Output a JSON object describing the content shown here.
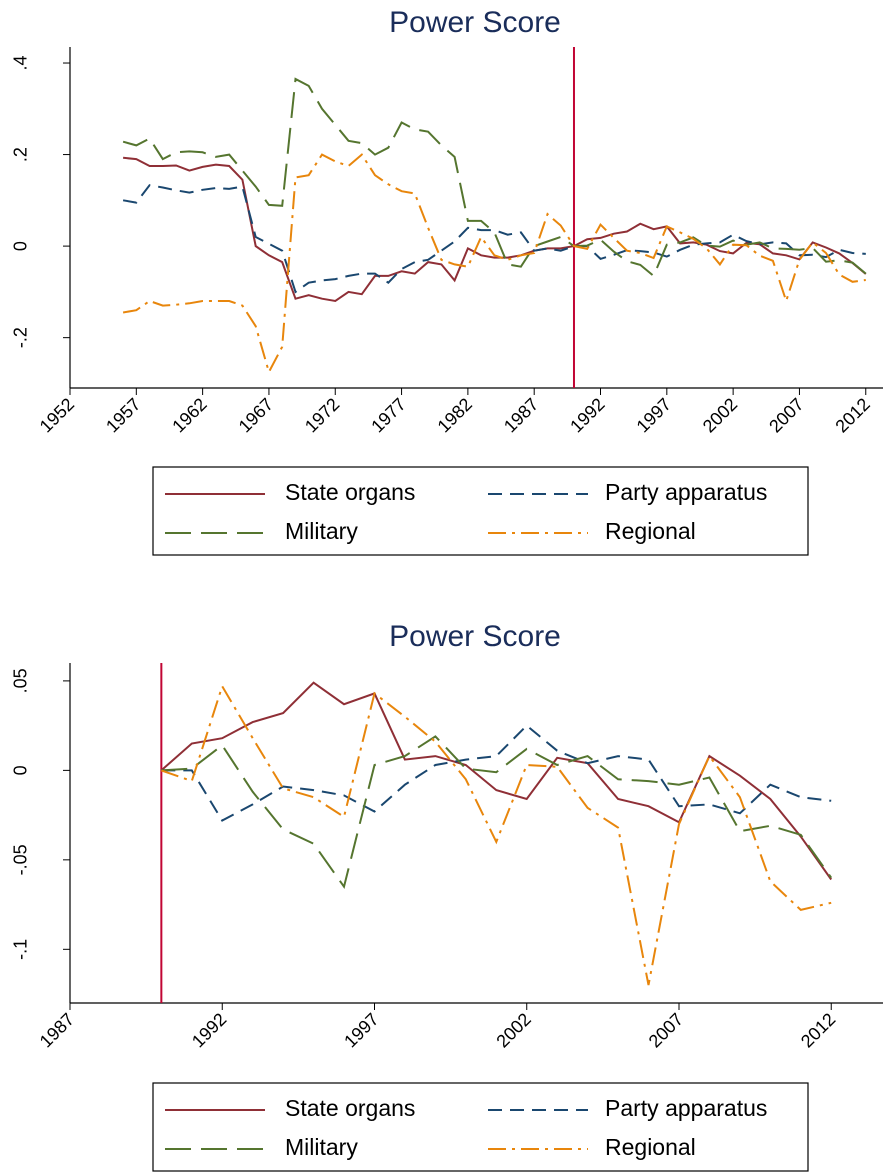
{
  "chart_data": [
    {
      "type": "line",
      "title": "Power Score",
      "x": [
        1956,
        1957,
        1958,
        1959,
        1960,
        1961,
        1962,
        1963,
        1964,
        1965,
        1966,
        1967,
        1968,
        1969,
        1970,
        1971,
        1972,
        1973,
        1974,
        1975,
        1976,
        1977,
        1978,
        1979,
        1980,
        1981,
        1982,
        1983,
        1984,
        1985,
        1986,
        1987,
        1988,
        1989,
        1990,
        1991,
        1992,
        1993,
        1994,
        1995,
        1996,
        1997,
        1998,
        1999,
        2000,
        2001,
        2002,
        2003,
        2004,
        2005,
        2006,
        2007,
        2008,
        2009,
        2010,
        2011,
        2012
      ],
      "series": [
        {
          "name": "State organs",
          "color": "#8f2f36",
          "style": "solid",
          "values": [
            0.193,
            0.19,
            0.175,
            0.175,
            0.176,
            0.165,
            0.173,
            0.178,
            0.175,
            0.145,
            0.0,
            -0.02,
            -0.035,
            -0.115,
            -0.107,
            -0.115,
            -0.12,
            -0.1,
            -0.105,
            -0.065,
            -0.065,
            -0.055,
            -0.06,
            -0.035,
            -0.04,
            -0.075,
            -0.005,
            -0.02,
            -0.025,
            -0.025,
            -0.02,
            -0.01,
            -0.005,
            -0.005,
            0,
            0.015,
            0.018,
            0.027,
            0.032,
            0.049,
            0.037,
            0.043,
            0.006,
            0.008,
            0.003,
            -0.011,
            -0.016,
            0.007,
            0.004,
            -0.016,
            -0.02,
            -0.029,
            0.008,
            -0.003,
            -0.016,
            -0.037,
            -0.061
          ]
        },
        {
          "name": "Party apparatus",
          "color": "#1a476f",
          "style": "dash",
          "values": [
            0.1,
            0.095,
            0.133,
            0.128,
            0.122,
            0.117,
            0.123,
            0.127,
            0.125,
            0.13,
            0.02,
            0.005,
            -0.01,
            -0.1,
            -0.08,
            -0.075,
            -0.072,
            -0.065,
            -0.06,
            -0.06,
            -0.08,
            -0.05,
            -0.035,
            -0.03,
            -0.01,
            0.01,
            0.04,
            0.035,
            0.035,
            0.025,
            0.03,
            -0.01,
            -0.005,
            -0.01,
            0,
            0,
            -0.028,
            -0.019,
            -0.009,
            -0.011,
            -0.014,
            -0.023,
            -0.008,
            0.003,
            0.006,
            0.008,
            0.025,
            0.011,
            0.004,
            0.008,
            0.006,
            -0.02,
            -0.019,
            -0.024,
            -0.008,
            -0.015,
            -0.017
          ]
        },
        {
          "name": "Military",
          "color": "#55752f",
          "style": "longdash",
          "values": [
            0.228,
            0.22,
            0.235,
            0.19,
            0.205,
            0.207,
            0.205,
            0.195,
            0.2,
            0.165,
            0.13,
            0.09,
            0.088,
            0.365,
            0.35,
            0.3,
            0.265,
            0.23,
            0.225,
            0.2,
            0.215,
            0.27,
            0.255,
            0.25,
            0.22,
            0.195,
            0.055,
            0.055,
            0.03,
            -0.04,
            -0.045,
            0,
            0.01,
            0.02,
            0,
            0.001,
            0.014,
            -0.012,
            -0.033,
            -0.041,
            -0.065,
            0.003,
            0.008,
            0.019,
            0.001,
            -0.001,
            0.012,
            0.003,
            0.008,
            -0.005,
            -0.006,
            -0.008,
            -0.004,
            -0.034,
            -0.031,
            -0.036,
            -0.06
          ]
        },
        {
          "name": "Regional",
          "color": "#e8860c",
          "style": "dashdot",
          "values": [
            -0.145,
            -0.14,
            -0.12,
            -0.13,
            -0.128,
            -0.125,
            -0.12,
            -0.12,
            -0.12,
            -0.13,
            -0.175,
            -0.275,
            -0.22,
            0.15,
            0.155,
            0.2,
            0.185,
            0.175,
            0.2,
            0.155,
            0.135,
            0.12,
            0.115,
            0.04,
            -0.03,
            -0.04,
            -0.045,
            0.02,
            -0.02,
            -0.03,
            -0.02,
            -0.015,
            0.07,
            0.045,
            0,
            -0.006,
            0.047,
            0.018,
            -0.01,
            -0.015,
            -0.026,
            0.043,
            0.03,
            0.016,
            -0.005,
            -0.04,
            0.003,
            0.002,
            -0.021,
            -0.032,
            -0.12,
            -0.03,
            0.008,
            -0.015,
            -0.062,
            -0.078,
            -0.074
          ]
        }
      ],
      "xlim": [
        1952,
        2013.3
      ],
      "xticks": [
        1952,
        1957,
        1962,
        1967,
        1972,
        1977,
        1982,
        1987,
        1992,
        1997,
        2002,
        2007,
        2012
      ],
      "ylim": [
        -0.31,
        0.435
      ],
      "yticks": [
        {
          "value": -0.2,
          "label": "-.2"
        },
        0,
        {
          "value": 0.2,
          "label": ".2"
        },
        {
          "value": 0.4,
          "label": ".4"
        }
      ],
      "vline": 1990,
      "vline_color": "#c10534",
      "legend": "bottom"
    },
    {
      "type": "line",
      "title": "Power Score",
      "x": [
        1990,
        1991,
        1992,
        1993,
        1994,
        1995,
        1996,
        1997,
        1998,
        1999,
        2000,
        2001,
        2002,
        2003,
        2004,
        2005,
        2006,
        2007,
        2008,
        2009,
        2010,
        2011,
        2012
      ],
      "series": [
        {
          "name": "State organs",
          "color": "#8f2f36",
          "style": "solid",
          "values": [
            0,
            0.015,
            0.018,
            0.027,
            0.032,
            0.049,
            0.037,
            0.043,
            0.006,
            0.008,
            0.003,
            -0.011,
            -0.016,
            0.007,
            0.004,
            -0.016,
            -0.02,
            -0.029,
            0.008,
            -0.003,
            -0.016,
            -0.037,
            -0.061
          ]
        },
        {
          "name": "Party apparatus",
          "color": "#1a476f",
          "style": "dash",
          "values": [
            0,
            0,
            -0.028,
            -0.019,
            -0.009,
            -0.011,
            -0.014,
            -0.023,
            -0.008,
            0.003,
            0.006,
            0.008,
            0.025,
            0.011,
            0.004,
            0.008,
            0.006,
            -0.02,
            -0.019,
            -0.024,
            -0.008,
            -0.015,
            -0.017
          ]
        },
        {
          "name": "Military",
          "color": "#55752f",
          "style": "longdash",
          "values": [
            0,
            0.001,
            0.014,
            -0.012,
            -0.033,
            -0.041,
            -0.065,
            0.003,
            0.008,
            0.019,
            0.001,
            -0.001,
            0.012,
            0.003,
            0.008,
            -0.005,
            -0.006,
            -0.008,
            -0.004,
            -0.034,
            -0.031,
            -0.036,
            -0.06
          ]
        },
        {
          "name": "Regional",
          "color": "#e8860c",
          "style": "dashdot",
          "values": [
            0,
            -0.006,
            0.047,
            0.018,
            -0.01,
            -0.015,
            -0.026,
            0.043,
            0.03,
            0.016,
            -0.005,
            -0.04,
            0.003,
            0.002,
            -0.021,
            -0.032,
            -0.12,
            -0.03,
            0.008,
            -0.015,
            -0.062,
            -0.078,
            -0.074
          ]
        }
      ],
      "xlim": [
        1987,
        2013.7
      ],
      "xticks": [
        1987,
        1992,
        1997,
        2002,
        2007,
        2012
      ],
      "ylim": [
        -0.13,
        0.06
      ],
      "yticks": [
        {
          "value": -0.1,
          "label": "-.1"
        },
        {
          "value": -0.05,
          "label": "-.05"
        },
        {
          "value": 0,
          "label": "0"
        },
        {
          "value": 0.05,
          "label": ".05"
        }
      ],
      "vline": 1990,
      "vline_color": "#c10534",
      "legend": "bottom"
    }
  ]
}
